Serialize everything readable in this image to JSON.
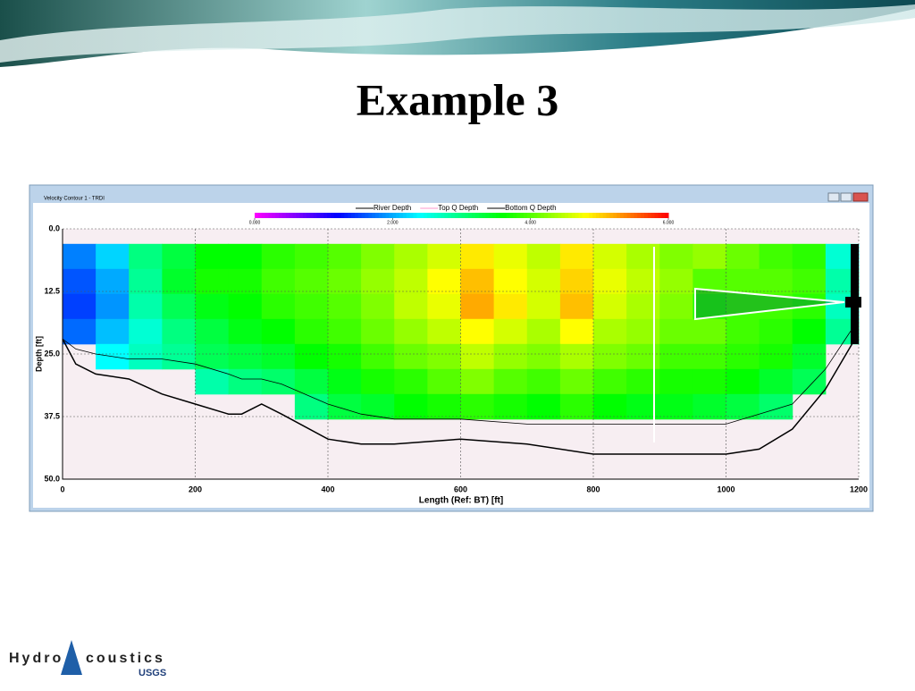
{
  "slide": {
    "title": "Example 3",
    "logo": {
      "left": "Hydro",
      "right": "coustics",
      "agency": "USGS"
    }
  },
  "window": {
    "title": "Velocity Contour 1 - TRDI"
  },
  "chart_data": {
    "type": "heatmap",
    "ylabel": "Depth [ft]",
    "xlabel": "Length (Ref: BT) [ft]",
    "xlim": [
      0,
      1200
    ],
    "xticks": [
      0,
      200,
      400,
      600,
      800,
      1000,
      1200
    ],
    "ylim": [
      0,
      50
    ],
    "yticks": [
      {
        "value": 0,
        "label": "0.0"
      },
      {
        "value": 12.5,
        "label": "12.5"
      },
      {
        "value": 25,
        "label": "25.0"
      },
      {
        "value": 37.5,
        "label": "37.5"
      },
      {
        "value": 50,
        "label": "50.0"
      }
    ],
    "y_inverted": true,
    "grid": true,
    "colorbar": {
      "lim": [
        0,
        6
      ],
      "colors": [
        "#ff00ff",
        "#0000ff",
        "#00ffff",
        "#00ff00",
        "#ffff00",
        "#ff0000"
      ],
      "ticks": [
        {
          "value": 0,
          "label": "0.000"
        },
        {
          "value": 2,
          "label": "2.000"
        },
        {
          "value": 4,
          "label": "4.000"
        },
        {
          "value": 6,
          "label": "6.000"
        }
      ]
    },
    "x_edges": [
      0,
      50,
      100,
      150,
      200,
      250,
      300,
      350,
      400,
      450,
      500,
      550,
      600,
      650,
      700,
      750,
      800,
      850,
      900,
      950,
      1000,
      1050,
      1100,
      1150,
      1200
    ],
    "depth_edges": [
      3,
      8,
      13,
      18,
      23,
      28,
      33,
      38
    ],
    "grid_values": [
      [
        1.8,
        2.2,
        3.0,
        3.3,
        3.6,
        3.6,
        3.8,
        3.9,
        4.0,
        4.2,
        4.4,
        4.6,
        4.9,
        4.7,
        4.5,
        4.9,
        4.6,
        4.4,
        4.2,
        4.3,
        4.1,
        3.9,
        3.8,
        2.6
      ],
      [
        1.6,
        2.0,
        2.9,
        3.4,
        3.7,
        3.7,
        3.9,
        4.0,
        4.1,
        4.3,
        4.5,
        4.8,
        5.1,
        4.8,
        4.6,
        5.0,
        4.7,
        4.5,
        4.3,
        4.0,
        4.0,
        4.0,
        3.9,
        2.8
      ],
      [
        1.5,
        1.9,
        2.8,
        3.2,
        3.5,
        3.6,
        3.8,
        3.9,
        4.0,
        4.2,
        4.5,
        4.7,
        5.2,
        4.9,
        4.6,
        5.1,
        4.6,
        4.4,
        4.2,
        3.8,
        3.9,
        3.9,
        3.8,
        2.7
      ],
      [
        1.7,
        2.1,
        2.6,
        3.0,
        3.3,
        3.5,
        3.6,
        3.8,
        3.9,
        4.1,
        4.3,
        4.5,
        4.8,
        4.6,
        4.4,
        4.8,
        4.4,
        4.3,
        4.1,
        4.1,
        3.9,
        3.8,
        3.6,
        2.9
      ],
      [
        null,
        2.4,
        2.7,
        2.9,
        3.2,
        3.3,
        3.4,
        3.6,
        3.7,
        3.9,
        4.1,
        4.2,
        4.5,
        4.3,
        4.2,
        4.4,
        4.2,
        4.1,
        3.9,
        3.9,
        3.8,
        3.7,
        3.4,
        null
      ],
      [
        null,
        null,
        null,
        null,
        2.8,
        3.0,
        3.1,
        3.3,
        3.5,
        3.7,
        3.8,
        4.0,
        4.2,
        4.0,
        3.9,
        4.1,
        3.9,
        3.8,
        3.7,
        3.7,
        3.6,
        3.4,
        3.2,
        null
      ],
      [
        null,
        null,
        null,
        null,
        null,
        null,
        null,
        3.0,
        3.3,
        3.4,
        3.6,
        3.7,
        3.8,
        3.7,
        3.6,
        3.8,
        3.6,
        3.5,
        3.5,
        3.4,
        3.3,
        3.1,
        null,
        null
      ]
    ],
    "x": [
      0,
      20,
      50,
      100,
      150,
      200,
      250,
      270,
      300,
      330,
      400,
      450,
      500,
      600,
      700,
      800,
      900,
      1000,
      1050,
      1100,
      1150,
      1190,
      1200
    ],
    "series": [
      {
        "name": "River Depth",
        "color": "#000000",
        "width": 1.5,
        "values": [
          22,
          27,
          29,
          30,
          33,
          35,
          37,
          37,
          35,
          37,
          42,
          43,
          43,
          42,
          43,
          45,
          45,
          45,
          44,
          40,
          32,
          23,
          22
        ]
      },
      {
        "name": "Top Q Depth",
        "color": "#ff99cc",
        "width": 1
      },
      {
        "name": "Bottom Q Depth",
        "color": "#000000",
        "width": 0.8,
        "values": [
          22,
          24,
          25,
          26,
          26,
          27,
          29,
          30,
          30,
          31,
          35,
          37,
          38,
          38,
          39,
          39,
          39,
          39,
          37,
          35,
          28,
          20,
          19
        ]
      }
    ]
  }
}
